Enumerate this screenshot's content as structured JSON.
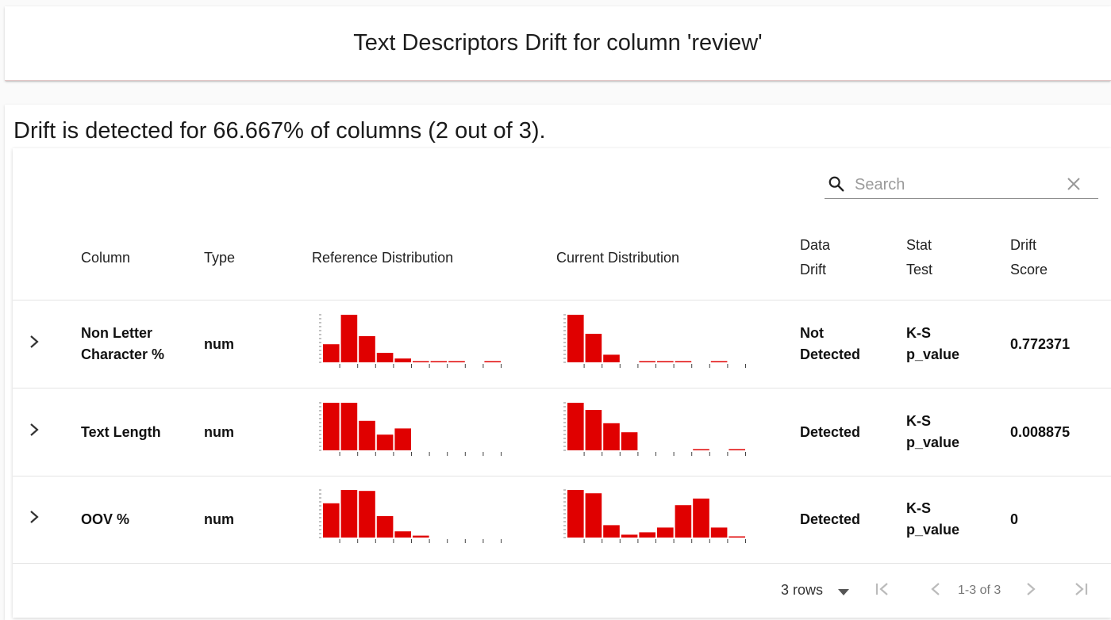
{
  "title": "Text Descriptors Drift for column 'review'",
  "summary": "Drift is detected for 66.667% of columns (2 out of 3).",
  "search": {
    "placeholder": "Search",
    "value": ""
  },
  "headers": {
    "column": "Column",
    "type": "Type",
    "reference": "Reference Distribution",
    "current": "Current Distribution",
    "data_drift_1": "Data",
    "data_drift_2": "Drift",
    "stat_test_1": "Stat",
    "stat_test_2": "Test",
    "drift_score_1": "Drift",
    "drift_score_2": "Score"
  },
  "rows": [
    {
      "column_1": "Non Letter",
      "column_2": "Character %",
      "type": "num",
      "drift_1": "Not",
      "drift_2": "Detected",
      "stat_1": "K-S",
      "stat_2": "p_value",
      "score": "0.772371",
      "reference_hist": [
        0.38,
        1.0,
        0.55,
        0.2,
        0.08,
        0.02,
        0.02,
        0.02,
        0.0,
        0.02
      ],
      "current_hist": [
        1.0,
        0.6,
        0.16,
        0.0,
        0.02,
        0.02,
        0.02,
        0.0,
        0.02,
        0.0
      ]
    },
    {
      "column_1": "Text Length",
      "column_2": "",
      "type": "num",
      "drift_1": "Detected",
      "drift_2": "",
      "stat_1": "K-S",
      "stat_2": "p_value",
      "score": "0.008875",
      "reference_hist": [
        1.0,
        1.0,
        0.62,
        0.33,
        0.46,
        0,
        0,
        0,
        0,
        0
      ],
      "current_hist": [
        1.0,
        0.85,
        0.57,
        0.38,
        0.0,
        0.0,
        0.0,
        0.02,
        0.0,
        0.02
      ]
    },
    {
      "column_1": "OOV %",
      "column_2": "",
      "type": "num",
      "drift_1": "Detected",
      "drift_2": "",
      "stat_1": "K-S",
      "stat_2": "p_value",
      "score": "0",
      "reference_hist": [
        0.72,
        1.0,
        0.98,
        0.45,
        0.13,
        0.04,
        0,
        0,
        0,
        0
      ],
      "current_hist": [
        1.0,
        0.93,
        0.26,
        0.06,
        0.11,
        0.21,
        0.68,
        0.82,
        0.21,
        0.02
      ]
    }
  ],
  "footer": {
    "rows_per_page": "3 rows",
    "page_info": "1-3 of 3"
  },
  "colors": {
    "bar": "#e00000"
  }
}
